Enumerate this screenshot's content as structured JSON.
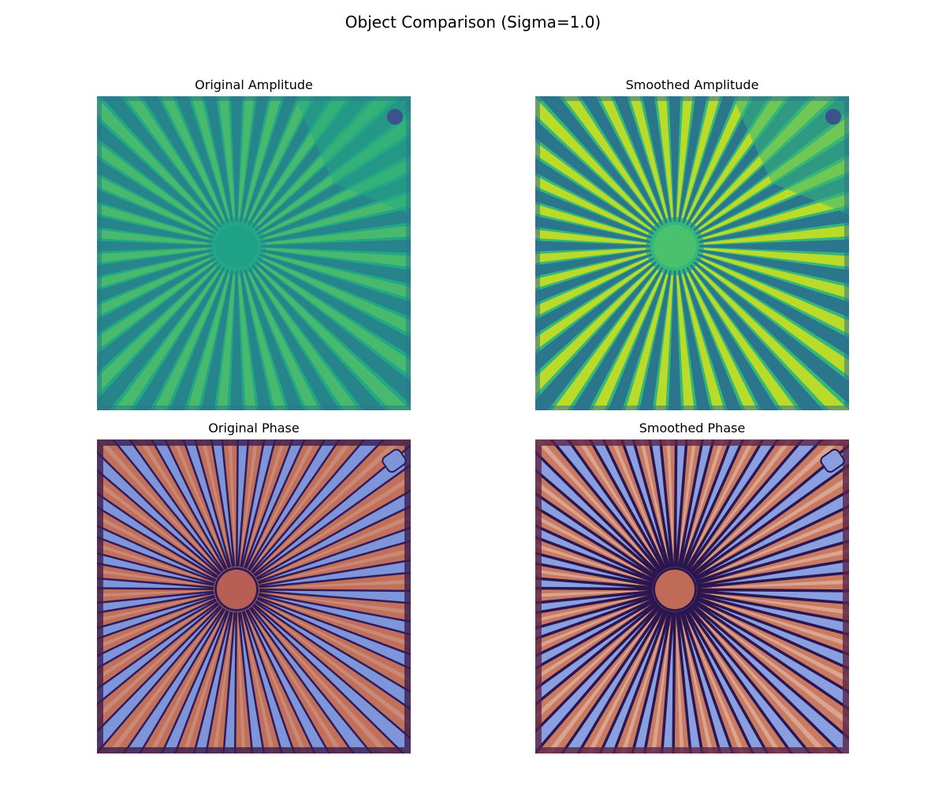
{
  "figure": {
    "suptitle": "Object Comparison (Sigma=1.0)"
  },
  "panels": [
    {
      "title": "Original Amplitude",
      "colormap": "viridis",
      "colors": {
        "background": "#22A884",
        "spoke_dark": "#2A788E",
        "spoke_light": "#7AD151",
        "center": "#1FA187",
        "corner": "#3B528B"
      }
    },
    {
      "title": "Smoothed Amplitude",
      "colormap": "viridis",
      "colors": {
        "background": "#35B779",
        "spoke_dark": "#2C728E",
        "spoke_light": "#DDE318",
        "center": "#4AC16D",
        "corner": "#3B528B"
      }
    },
    {
      "title": "Original Phase",
      "colormap": "twilight_shifted",
      "colors": {
        "background": "#C0705B",
        "spoke_fill": "#7E95DA",
        "spoke_edge": "#2F1B5A",
        "center": "#B85F55",
        "frame": "#3C1D4E",
        "highlight": "#E8D3C5"
      }
    },
    {
      "title": "Smoothed Phase",
      "colormap": "twilight_shifted",
      "colors": {
        "background": "#C87A62",
        "spoke_fill": "#8A9FE0",
        "spoke_edge": "#2A1650",
        "center": "#C06A58",
        "frame": "#5A2448",
        "highlight": "#F0D8C8"
      }
    }
  ]
}
